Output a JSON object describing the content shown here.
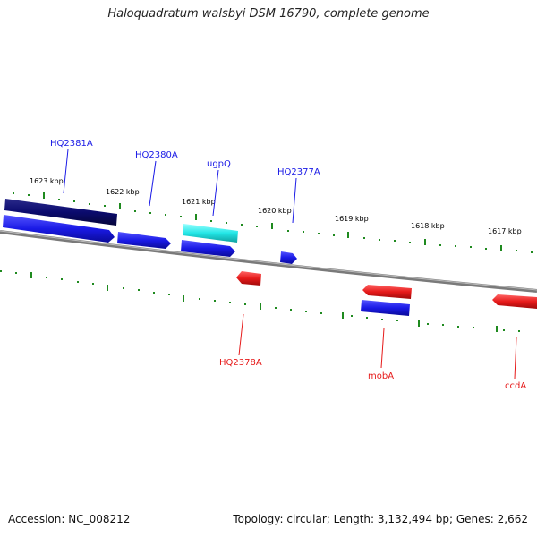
{
  "title": "Haloquadratum walsbyi DSM 16790, complete genome",
  "footer": {
    "accession": "Accession: NC_008212",
    "summary": "Topology: circular; Length: 3,132,494 bp; Genes: 2,662"
  },
  "ticks": {
    "labels": [
      "1623 kbp",
      "1622 kbp",
      "1621 kbp",
      "1620 kbp",
      "1619 kbp",
      "1618 kbp",
      "1617 kbp"
    ]
  },
  "genes": {
    "top_labels": [
      "HQ2381A",
      "HQ2380A",
      "ugpQ",
      "HQ2377A"
    ],
    "bottom_labels": [
      "HQ2378A",
      "mobA",
      "ccdA"
    ]
  },
  "colors": {
    "forward": "#1a1ae6",
    "forward_dark": "#0b0b6e",
    "cyan": "#22e6e6",
    "reverse": "#e61a1a",
    "tick": "#1f8a1f",
    "backbone": "#808080"
  }
}
